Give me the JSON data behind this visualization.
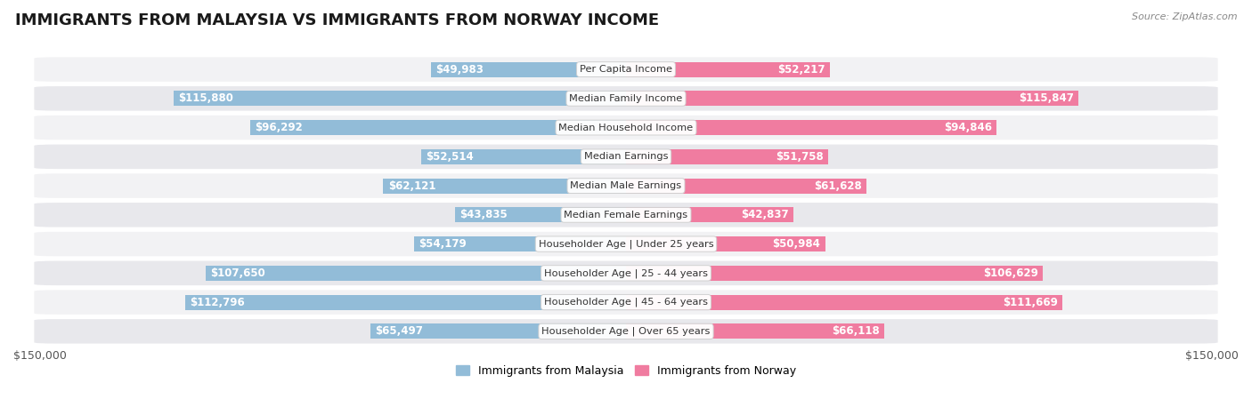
{
  "title": "IMMIGRANTS FROM MALAYSIA VS IMMIGRANTS FROM NORWAY INCOME",
  "source": "Source: ZipAtlas.com",
  "categories": [
    "Per Capita Income",
    "Median Family Income",
    "Median Household Income",
    "Median Earnings",
    "Median Male Earnings",
    "Median Female Earnings",
    "Householder Age | Under 25 years",
    "Householder Age | 25 - 44 years",
    "Householder Age | 45 - 64 years",
    "Householder Age | Over 65 years"
  ],
  "malaysia_values": [
    49983,
    115880,
    96292,
    52514,
    62121,
    43835,
    54179,
    107650,
    112796,
    65497
  ],
  "norway_values": [
    52217,
    115847,
    94846,
    51758,
    61628,
    42837,
    50984,
    106629,
    111669,
    66118
  ],
  "malaysia_labels": [
    "$49,983",
    "$115,880",
    "$96,292",
    "$52,514",
    "$62,121",
    "$43,835",
    "$54,179",
    "$107,650",
    "$112,796",
    "$65,497"
  ],
  "norway_labels": [
    "$52,217",
    "$115,847",
    "$94,846",
    "$51,758",
    "$61,628",
    "$42,837",
    "$50,984",
    "$106,629",
    "$111,669",
    "$66,118"
  ],
  "max_value": 150000,
  "malaysia_color": "#92bcd8",
  "norway_color": "#f07ca0",
  "background_color": "#ffffff",
  "row_bg_even": "#f2f2f4",
  "row_bg_odd": "#e8e8ec",
  "legend_malaysia": "Immigrants from Malaysia",
  "legend_norway": "Immigrants from Norway",
  "bar_height": 0.52,
  "inside_threshold": 30000,
  "title_fontsize": 13,
  "label_fontsize": 8.5,
  "category_fontsize": 8.2,
  "axis_label_fontsize": 9
}
